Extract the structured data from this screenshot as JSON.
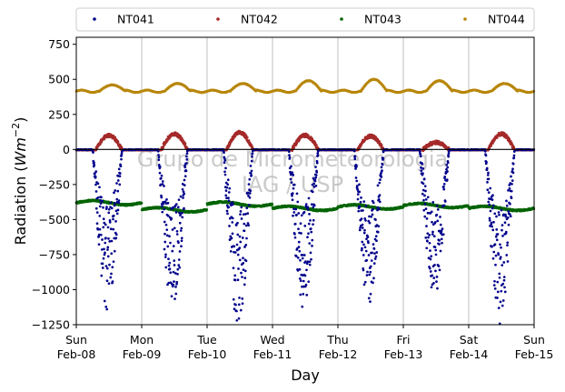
{
  "chart_data": {
    "type": "scatter",
    "xlabel": "Day",
    "ylabel_prefix": "Radiation (",
    "ylabel_unit": "Wm",
    "ylabel_exp": "−2",
    "ylabel_suffix": ")",
    "ylim": [
      -1250,
      800
    ],
    "xlim": [
      0,
      7
    ],
    "y_ticks": [
      750,
      500,
      250,
      0,
      -250,
      -500,
      -750,
      -1000,
      -1250
    ],
    "y_tick_labels": [
      "750",
      "500",
      "250",
      "0",
      "−250",
      "−500",
      "−750",
      "−1000",
      "−1250"
    ],
    "x_ticks": [
      {
        "day": 0,
        "line1": "Sun",
        "line2": "Feb-08"
      },
      {
        "day": 1,
        "line1": "Mon",
        "line2": "Feb-09"
      },
      {
        "day": 2,
        "line1": "Tue",
        "line2": "Feb-10"
      },
      {
        "day": 3,
        "line1": "Wed",
        "line2": "Feb-11"
      },
      {
        "day": 4,
        "line1": "Thu",
        "line2": "Feb-12"
      },
      {
        "day": 5,
        "line1": "Fri",
        "line2": "Feb-13"
      },
      {
        "day": 6,
        "line1": "Sat",
        "line2": "Feb-14"
      },
      {
        "day": 7,
        "line1": "Sun",
        "line2": "Feb-15"
      }
    ],
    "grid": "vertical",
    "legend_position": "top",
    "watermark_line1": "Grupo de Micrometeorologia",
    "watermark_line2": "IAG / USP",
    "series": [
      {
        "name": "NT041",
        "color": "#00008b",
        "description": "daytime minima per day",
        "values": [
          -1150,
          -1140,
          -1250,
          -1140,
          -1110,
          -1080,
          -1250
        ]
      },
      {
        "name": "NT042",
        "color": "#a52a2a",
        "description": "daytime maxima per day",
        "values": [
          100,
          110,
          120,
          100,
          95,
          50,
          110
        ]
      },
      {
        "name": "NT043",
        "color": "#006400",
        "description": "approx. -370 to -440 throughout",
        "values": [
          -380,
          -430,
          -390,
          -420,
          -410,
          -400,
          -420
        ]
      },
      {
        "name": "NT044",
        "color": "#b8860b",
        "description": "daily maxima",
        "values": [
          460,
          470,
          470,
          490,
          500,
          490,
          470
        ]
      }
    ]
  }
}
